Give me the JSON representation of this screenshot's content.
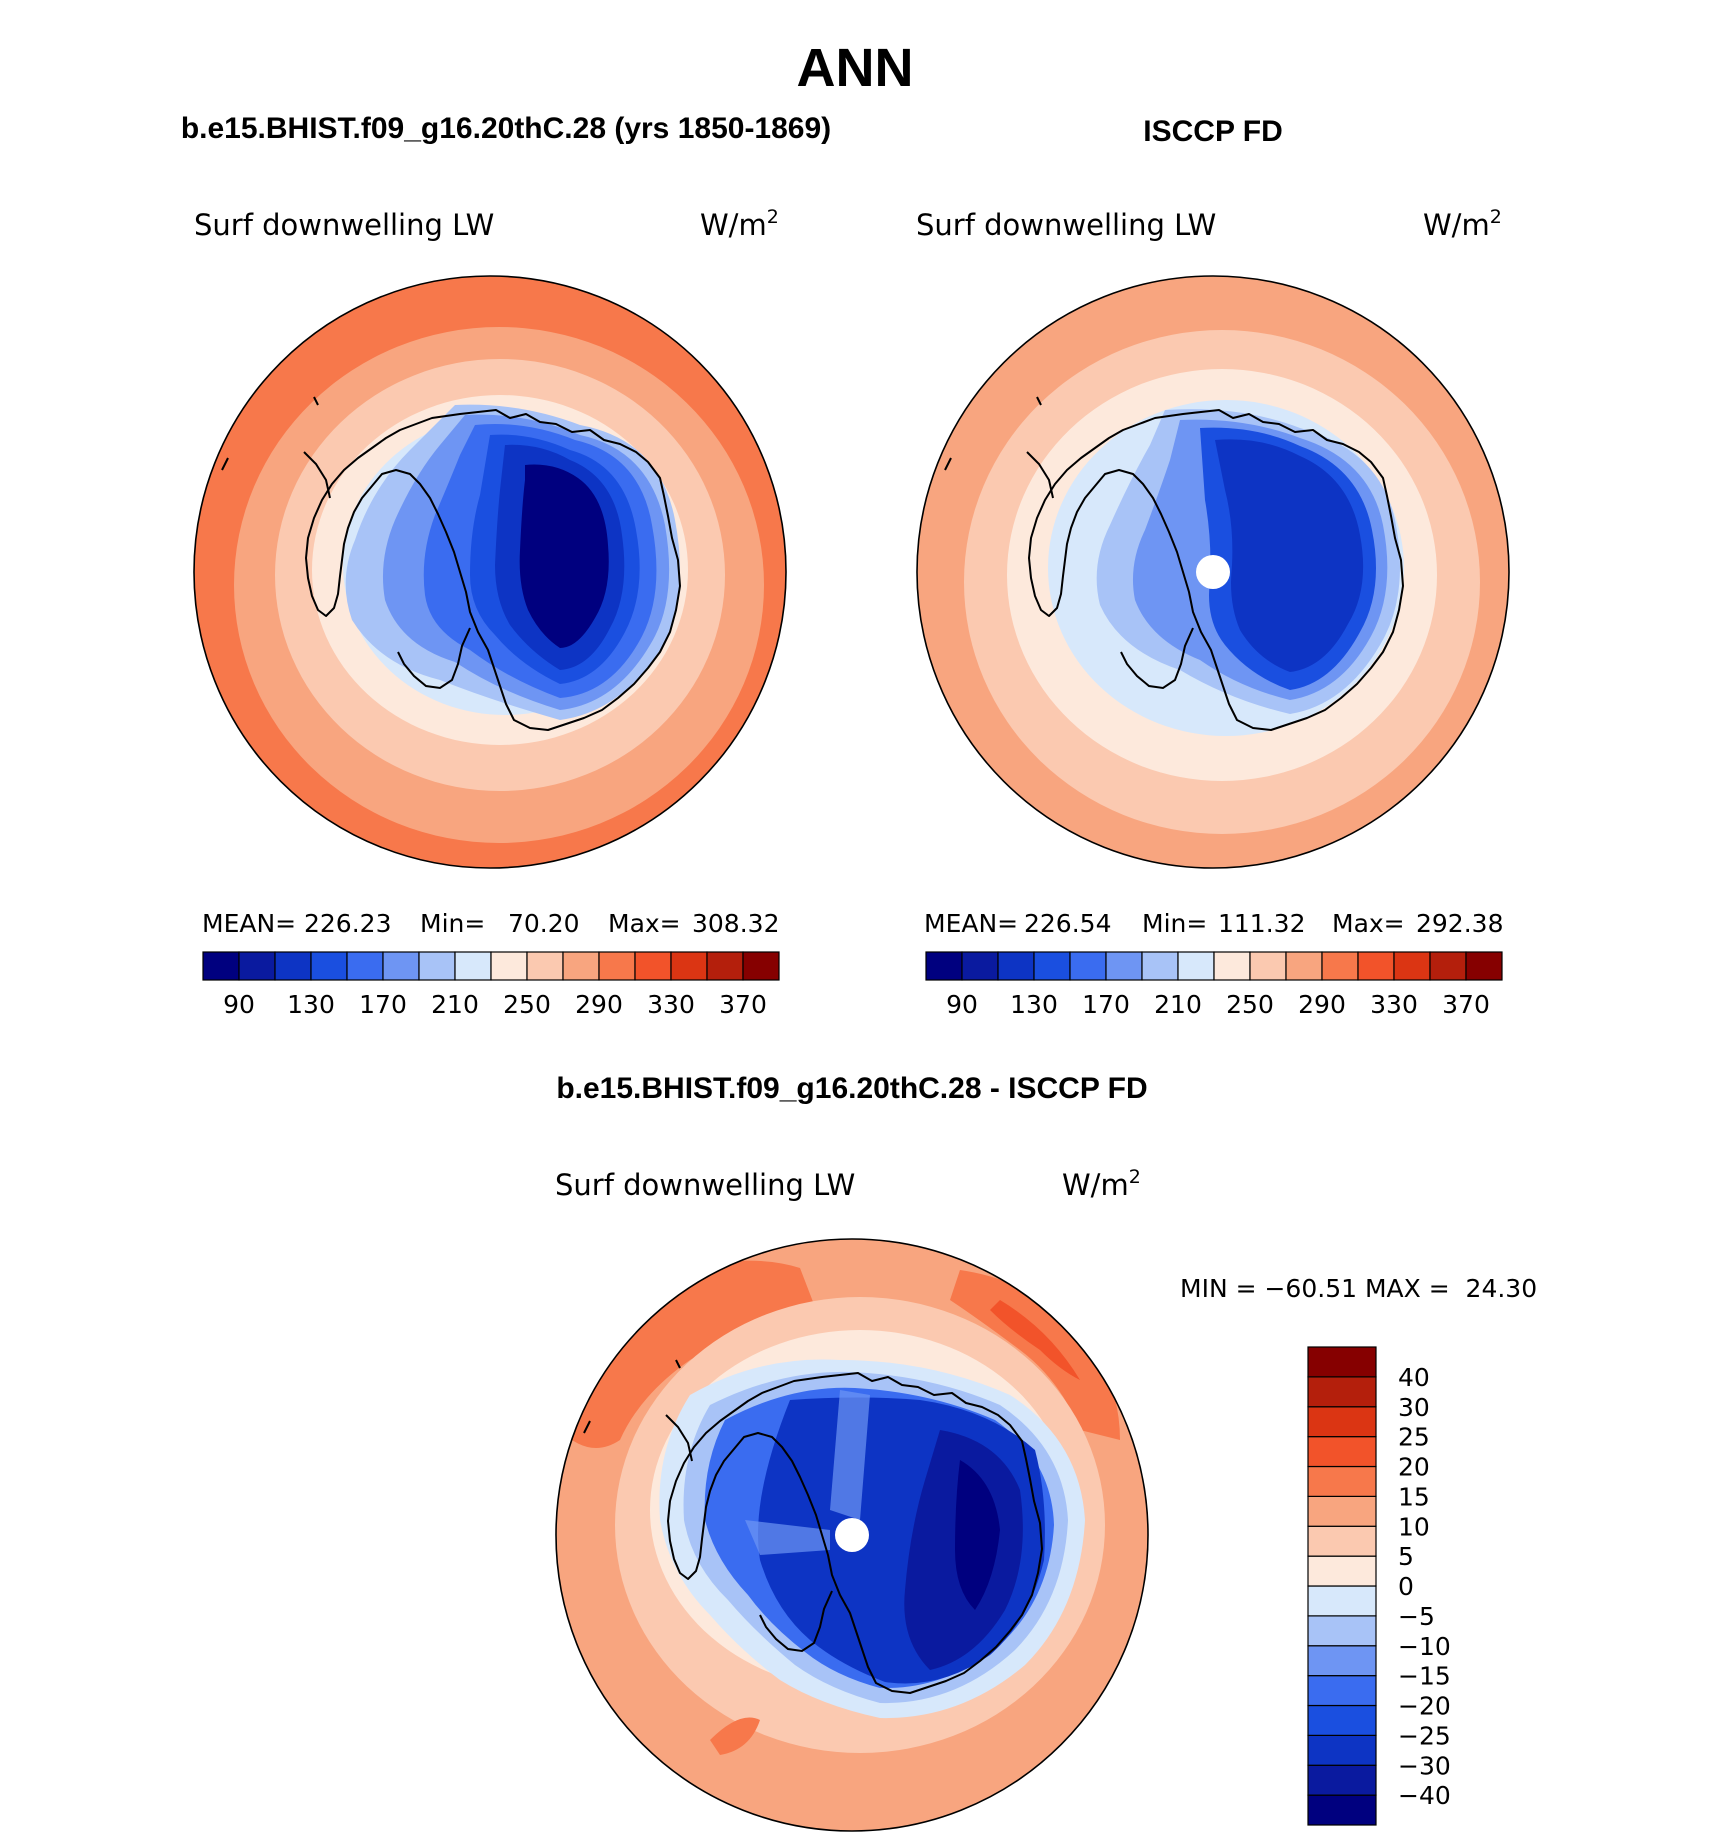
{
  "page": {
    "title": "ANN",
    "left_case_title": "b.e15.BHIST.f09_g16.20thC.28 (yrs 1850-1869)",
    "right_case_title": "ISCCP FD",
    "diff_title": "b.e15.BHIST.f09_g16.20thC.28 - ISCCP FD"
  },
  "panels": [
    {
      "id": "model",
      "variable": "Surf downwelling LW",
      "units": "W/m",
      "units_sup": "2",
      "stats": {
        "mean_label": "MEAN=",
        "mean": "226.23",
        "min_label": "Min=",
        "min": "70.20",
        "max_label": "Max=",
        "max": "308.32"
      },
      "pole_hole": false,
      "colorbar": {
        "colors": [
          "#00007f",
          "#0a1a9f",
          "#0d34c4",
          "#1a4fe0",
          "#3a6cf0",
          "#6e95f3",
          "#a8c3f7",
          "#d7e8fb",
          "#fde9dc",
          "#fbc9b0",
          "#f8a57f",
          "#f7784b",
          "#f2532a",
          "#db3513",
          "#b41f0c",
          "#860000"
        ],
        "labels": [
          "90",
          "130",
          "170",
          "210",
          "250",
          "290",
          "330",
          "370"
        ]
      }
    },
    {
      "id": "obs",
      "variable": "Surf downwelling LW",
      "units": "W/m",
      "units_sup": "2",
      "stats": {
        "mean_label": "MEAN=",
        "mean": "226.54",
        "min_label": "Min=",
        "min": "111.32",
        "max_label": "Max=",
        "max": "292.38"
      },
      "pole_hole": true,
      "colorbar": {
        "colors": [
          "#00007f",
          "#0a1a9f",
          "#0d34c4",
          "#1a4fe0",
          "#3a6cf0",
          "#6e95f3",
          "#a8c3f7",
          "#d7e8fb",
          "#fde9dc",
          "#fbc9b0",
          "#f8a57f",
          "#f7784b",
          "#f2532a",
          "#db3513",
          "#b41f0c",
          "#860000"
        ],
        "labels": [
          "90",
          "130",
          "170",
          "210",
          "250",
          "290",
          "330",
          "370"
        ]
      }
    },
    {
      "id": "diff",
      "variable": "Surf downwelling LW",
      "units": "W/m",
      "units_sup": "2",
      "stats_text": "MIN = −60.51 MAX =  24.30",
      "pole_hole": true,
      "colorbar": {
        "colors": [
          "#00007f",
          "#0a1a9f",
          "#0d34c4",
          "#1a4fe0",
          "#3a6cf0",
          "#6e95f3",
          "#a8c3f7",
          "#d7e8fb",
          "#fde9dc",
          "#fbc9b0",
          "#f8a57f",
          "#f7784b",
          "#f2532a",
          "#db3513",
          "#b41f0c",
          "#860000"
        ],
        "labels": [
          "40",
          "30",
          "25",
          "20",
          "15",
          "10",
          "5",
          "0",
          "−5",
          "−10",
          "−15",
          "−20",
          "−25",
          "−30",
          "−40"
        ]
      }
    }
  ]
}
